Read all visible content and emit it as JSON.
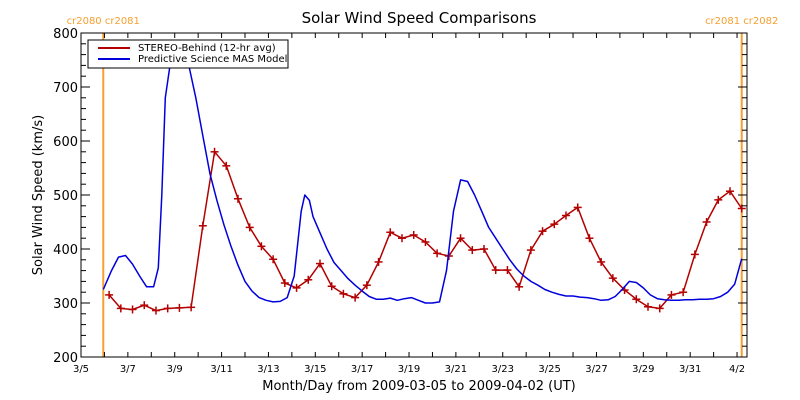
{
  "chart_data": {
    "type": "line",
    "title": "Solar Wind Speed Comparisons",
    "xlabel": "Month/Day from 2009-03-05 to 2009-04-02 (UT)",
    "ylabel": "Solar Wind Speed (km/s)",
    "ylim": [
      200,
      800
    ],
    "xlim_days": [
      0,
      28.4
    ],
    "x_start_date": "2009-03-05",
    "y_ticks": [
      200,
      300,
      400,
      500,
      600,
      700,
      800
    ],
    "y_tick_labels": [
      "200",
      "300",
      "400",
      "500",
      "600",
      "700",
      "800"
    ],
    "x_ticks_days": [
      0,
      2,
      4,
      6,
      8,
      10,
      12,
      14,
      16,
      18,
      20,
      22,
      24,
      26,
      28
    ],
    "x_tick_labels": [
      "3/5",
      "3/7",
      "3/9",
      "3/11",
      "3/13",
      "3/15",
      "3/17",
      "3/19",
      "3/21",
      "3/23",
      "3/25",
      "3/27",
      "3/29",
      "3/31",
      "4/2"
    ],
    "x_minor_every_days": 1,
    "y_minor_every": 20,
    "grid": false,
    "legend_position": "top-left",
    "carrington_markers": [
      {
        "day": 0.95,
        "label": "cr2080 cr2081",
        "side": "left"
      },
      {
        "day": 28.2,
        "label": "cr2081 cr2082",
        "side": "right"
      }
    ],
    "marker_color": "#f5a030",
    "series": [
      {
        "name": "STEREO-Behind (12-hr avg)",
        "color": "#b30000",
        "marker": "plus",
        "x_days": [
          1.2,
          1.7,
          2.2,
          2.7,
          3.2,
          3.7,
          4.2,
          4.7,
          5.2,
          5.7,
          6.2,
          6.7,
          7.2,
          7.7,
          8.2,
          8.7,
          9.2,
          9.7,
          10.2,
          10.7,
          11.2,
          11.7,
          12.2,
          12.7,
          13.2,
          13.7,
          14.2,
          14.7,
          15.2,
          15.7,
          16.2,
          16.7,
          17.2,
          17.7,
          18.2,
          18.7,
          19.2,
          19.7,
          20.2,
          20.7,
          21.2,
          21.7,
          22.2,
          22.7,
          23.2,
          23.7,
          24.2,
          24.7,
          25.2,
          25.7,
          26.2,
          26.7,
          27.2,
          27.7,
          28.2
        ],
        "values": [
          315,
          290,
          288,
          296,
          286,
          290,
          291,
          292,
          443,
          580,
          554,
          493,
          440,
          405,
          381,
          337,
          328,
          343,
          373,
          331,
          317,
          310,
          333,
          376,
          431,
          420,
          426,
          413,
          392,
          387,
          420,
          398,
          400,
          361,
          361,
          330,
          398,
          433,
          446,
          462,
          477,
          420,
          376,
          346,
          324,
          307,
          293,
          290,
          315,
          320,
          390,
          450,
          491,
          507,
          475
        ]
      },
      {
        "name": "Predictive Science MAS Model",
        "color": "#0000dd",
        "marker": "none",
        "x_days": [
          0.95,
          1.3,
          1.6,
          1.9,
          2.2,
          2.5,
          2.8,
          3.1,
          3.3,
          3.45,
          3.6,
          3.8,
          4.0,
          4.3,
          4.6,
          4.9,
          5.2,
          5.5,
          5.8,
          6.1,
          6.4,
          6.7,
          7.0,
          7.3,
          7.6,
          7.9,
          8.2,
          8.5,
          8.8,
          9.1,
          9.4,
          9.55,
          9.75,
          9.9,
          10.2,
          10.5,
          10.8,
          11.1,
          11.4,
          11.7,
          12.0,
          12.3,
          12.6,
          12.9,
          13.2,
          13.5,
          13.8,
          14.1,
          14.4,
          14.7,
          15.0,
          15.3,
          15.6,
          15.9,
          16.2,
          16.5,
          16.8,
          17.1,
          17.4,
          17.7,
          18.0,
          18.3,
          18.6,
          18.9,
          19.2,
          19.5,
          19.8,
          20.1,
          20.4,
          20.7,
          21.0,
          21.3,
          21.6,
          21.9,
          22.2,
          22.5,
          22.8,
          23.1,
          23.4,
          23.7,
          24.0,
          24.3,
          24.6,
          24.9,
          25.2,
          25.5,
          25.8,
          26.1,
          26.4,
          26.7,
          27.0,
          27.3,
          27.6,
          27.9,
          28.2
        ],
        "values": [
          325,
          360,
          385,
          388,
          372,
          350,
          330,
          330,
          365,
          500,
          680,
          740,
          755,
          752,
          740,
          680,
          610,
          540,
          490,
          445,
          405,
          370,
          340,
          322,
          310,
          305,
          302,
          303,
          310,
          350,
          470,
          500,
          490,
          460,
          430,
          400,
          375,
          360,
          345,
          333,
          322,
          312,
          307,
          307,
          309,
          305,
          308,
          310,
          305,
          300,
          300,
          302,
          360,
          470,
          528,
          525,
          500,
          470,
          440,
          420,
          400,
          380,
          363,
          350,
          340,
          333,
          325,
          320,
          316,
          313,
          313,
          311,
          310,
          308,
          305,
          306,
          312,
          325,
          340,
          338,
          328,
          315,
          308,
          306,
          305,
          305,
          306,
          306,
          307,
          307,
          308,
          312,
          320,
          335,
          382
        ]
      }
    ]
  }
}
